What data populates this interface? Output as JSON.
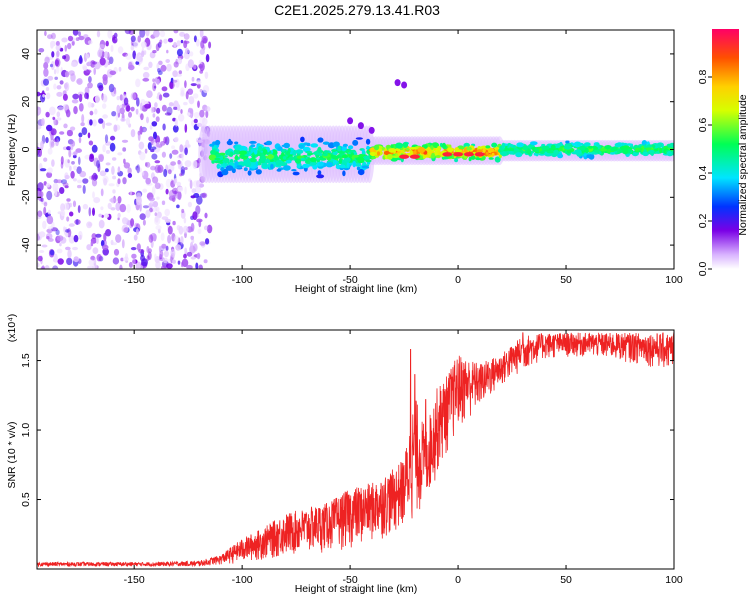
{
  "title": "C2E1.2025.279.13.41.R03",
  "chart_data": [
    {
      "type": "heatmap",
      "subtype": "spectrogram",
      "xlabel": "Height of straight line (km)",
      "ylabel": "Frequency (Hz)",
      "xlim": [
        -195,
        100
      ],
      "ylim": [
        -50,
        50
      ],
      "xticks": [
        -150,
        -100,
        -50,
        0,
        50,
        100
      ],
      "yticks": [
        -40,
        -20,
        0,
        20,
        40
      ],
      "colorbar": {
        "label": "Normalized spectral amplitude",
        "range": [
          0.0,
          1.0
        ],
        "ticks": [
          "0.0",
          "0.2",
          "0.4",
          "0.6",
          "0.8"
        ],
        "colors": [
          "#ffffff",
          "#d9b3ff",
          "#7a00e6",
          "#0033ff",
          "#00e5ff",
          "#00ff55",
          "#d6ff00",
          "#ffd000",
          "#ff5000",
          "#ff0066"
        ]
      },
      "regions": [
        {
          "x_range": [
            -195,
            -115
          ],
          "description": "noise",
          "freq_spread_hz": [
            -50,
            50
          ],
          "amplitude": [
            0.0,
            0.2
          ]
        },
        {
          "x_range": [
            -115,
            -40
          ],
          "center_hz": -3,
          "freq_spread_hz": [
            -10,
            8
          ],
          "amplitude": [
            0.2,
            0.6
          ]
        },
        {
          "x_range": [
            -40,
            20
          ],
          "center_hz": -1,
          "freq_spread_hz": [
            -5,
            4
          ],
          "amplitude": [
            0.3,
            0.95
          ]
        },
        {
          "x_range": [
            20,
            100
          ],
          "center_hz": 0,
          "freq_spread_hz": [
            -4,
            3
          ],
          "amplitude": [
            0.3,
            0.6
          ]
        }
      ],
      "peak_points": [
        {
          "x": -25,
          "y": -3
        },
        {
          "x": -20,
          "y": -3
        },
        {
          "x": -5,
          "y": -2
        },
        {
          "x": 0,
          "y": -2
        },
        {
          "x": 5,
          "y": -2
        },
        {
          "x": 10,
          "y": -2
        }
      ],
      "outliers": [
        {
          "x": -50,
          "y": 12
        },
        {
          "x": -45,
          "y": 10
        },
        {
          "x": -40,
          "y": 8
        },
        {
          "x": -28,
          "y": 28
        },
        {
          "x": -25,
          "y": 27
        }
      ]
    },
    {
      "type": "line",
      "xlabel": "Height of straight line (km)",
      "ylabel": "SNR (10 * v/v)",
      "y_multiplier": "(x10⁴)",
      "xlim": [
        -195,
        100
      ],
      "ylim": [
        0,
        1.72
      ],
      "xticks": [
        -150,
        -100,
        -50,
        0,
        50,
        100
      ],
      "yticks": [
        "0.5",
        "1.0",
        "1.5"
      ],
      "color": "#ee2222",
      "envelope": {
        "x": [
          -195,
          -140,
          -120,
          -110,
          -100,
          -90,
          -80,
          -70,
          -60,
          -50,
          -40,
          -30,
          -25,
          -20,
          -15,
          -10,
          -5,
          0,
          10,
          20,
          30,
          40,
          50,
          60,
          70,
          80,
          90,
          100
        ],
        "low": [
          0.02,
          0.02,
          0.02,
          0.03,
          0.04,
          0.06,
          0.08,
          0.1,
          0.12,
          0.14,
          0.18,
          0.24,
          0.28,
          0.33,
          0.45,
          0.65,
          0.82,
          0.98,
          1.15,
          1.3,
          1.42,
          1.5,
          1.52,
          1.52,
          1.5,
          1.48,
          1.45,
          1.4
        ],
        "high": [
          0.05,
          0.05,
          0.06,
          0.1,
          0.22,
          0.3,
          0.4,
          0.44,
          0.48,
          0.58,
          0.62,
          0.72,
          0.8,
          1.25,
          1.0,
          1.3,
          1.4,
          1.55,
          1.48,
          1.55,
          1.68,
          1.7,
          1.7,
          1.7,
          1.7,
          1.7,
          1.7,
          1.7
        ]
      },
      "peaks": [
        {
          "x": -22,
          "y": 1.58
        },
        {
          "x": -20,
          "y": 1.4
        },
        {
          "x": -15,
          "y": 1.22
        },
        {
          "x": 30,
          "y": 1.7
        },
        {
          "x": 100,
          "y": 1.7
        }
      ]
    }
  ]
}
